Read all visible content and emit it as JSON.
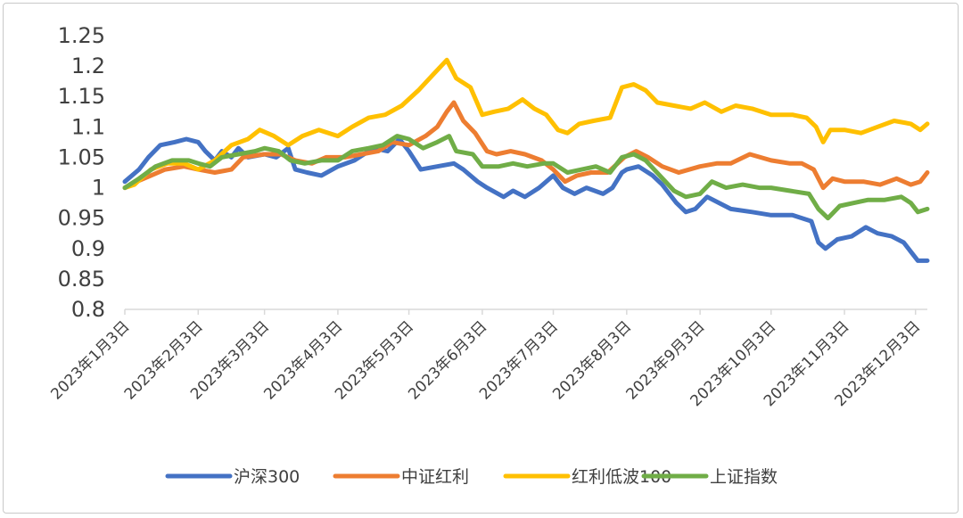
{
  "chart_data": {
    "type": "line",
    "title": "",
    "xlabel": "",
    "ylabel": "",
    "ylim": [
      0.8,
      1.25
    ],
    "y_ticks": [
      "1.25",
      "1.2",
      "1.15",
      "1.1",
      "1.05",
      "1",
      "0.95",
      "0.9",
      "0.85",
      "0.8"
    ],
    "x_ticks": [
      "2023年1月3日",
      "2023年2月3日",
      "2023年3月3日",
      "2023年4月3日",
      "2023年5月3日",
      "2023年6月3日",
      "2023年7月3日",
      "2023年8月3日",
      "2023年9月3日",
      "2023年10月3日",
      "2023年11月3日",
      "2023年12月3日"
    ],
    "x_range": [
      "2023-01-03",
      "2023-12-08"
    ],
    "grid": false,
    "legend_position": "bottom",
    "series": [
      {
        "name": "沪深300",
        "color": "#4472C4",
        "points": [
          [
            "2023-01-03",
            1.01
          ],
          [
            "2023-01-09",
            1.03
          ],
          [
            "2023-01-13",
            1.05
          ],
          [
            "2023-01-18",
            1.07
          ],
          [
            "2023-01-24",
            1.075
          ],
          [
            "2023-01-29",
            1.08
          ],
          [
            "2023-02-03",
            1.075
          ],
          [
            "2023-02-06",
            1.06
          ],
          [
            "2023-02-10",
            1.045
          ],
          [
            "2023-02-13",
            1.06
          ],
          [
            "2023-02-17",
            1.05
          ],
          [
            "2023-02-20",
            1.065
          ],
          [
            "2023-02-24",
            1.05
          ],
          [
            "2023-03-03",
            1.055
          ],
          [
            "2023-03-08",
            1.05
          ],
          [
            "2023-03-13",
            1.065
          ],
          [
            "2023-03-16",
            1.03
          ],
          [
            "2023-03-21",
            1.025
          ],
          [
            "2023-03-27",
            1.02
          ],
          [
            "2023-04-03",
            1.035
          ],
          [
            "2023-04-10",
            1.045
          ],
          [
            "2023-04-18",
            1.065
          ],
          [
            "2023-04-24",
            1.06
          ],
          [
            "2023-04-29",
            1.08
          ],
          [
            "2023-05-03",
            1.06
          ],
          [
            "2023-05-08",
            1.03
          ],
          [
            "2023-05-15",
            1.035
          ],
          [
            "2023-05-22",
            1.04
          ],
          [
            "2023-05-26",
            1.03
          ],
          [
            "2023-06-01",
            1.01
          ],
          [
            "2023-06-05",
            1.0
          ],
          [
            "2023-06-12",
            0.985
          ],
          [
            "2023-06-16",
            0.995
          ],
          [
            "2023-06-21",
            0.985
          ],
          [
            "2023-06-27",
            1.0
          ],
          [
            "2023-07-03",
            1.02
          ],
          [
            "2023-07-07",
            1.0
          ],
          [
            "2023-07-12",
            0.99
          ],
          [
            "2023-07-17",
            1.0
          ],
          [
            "2023-07-24",
            0.99
          ],
          [
            "2023-07-28",
            1.0
          ],
          [
            "2023-08-01",
            1.025
          ],
          [
            "2023-08-03",
            1.03
          ],
          [
            "2023-08-08",
            1.035
          ],
          [
            "2023-08-14",
            1.02
          ],
          [
            "2023-08-18",
            1.005
          ],
          [
            "2023-08-24",
            0.975
          ],
          [
            "2023-08-28",
            0.96
          ],
          [
            "2023-09-01",
            0.965
          ],
          [
            "2023-09-06",
            0.985
          ],
          [
            "2023-09-11",
            0.975
          ],
          [
            "2023-09-16",
            0.965
          ],
          [
            "2023-09-25",
            0.96
          ],
          [
            "2023-10-03",
            0.955
          ],
          [
            "2023-10-12",
            0.955
          ],
          [
            "2023-10-20",
            0.945
          ],
          [
            "2023-10-23",
            0.91
          ],
          [
            "2023-10-26",
            0.9
          ],
          [
            "2023-10-31",
            0.915
          ],
          [
            "2023-11-06",
            0.92
          ],
          [
            "2023-11-12",
            0.935
          ],
          [
            "2023-11-17",
            0.925
          ],
          [
            "2023-11-23",
            0.92
          ],
          [
            "2023-11-28",
            0.91
          ],
          [
            "2023-12-01",
            0.895
          ],
          [
            "2023-12-04",
            0.88
          ],
          [
            "2023-12-08",
            0.88
          ]
        ]
      },
      {
        "name": "中证红利",
        "color": "#ED7D31",
        "points": [
          [
            "2023-01-03",
            1.0
          ],
          [
            "2023-01-08",
            1.01
          ],
          [
            "2023-01-14",
            1.02
          ],
          [
            "2023-01-20",
            1.03
          ],
          [
            "2023-01-28",
            1.035
          ],
          [
            "2023-02-03",
            1.03
          ],
          [
            "2023-02-10",
            1.025
          ],
          [
            "2023-02-17",
            1.03
          ],
          [
            "2023-02-22",
            1.05
          ],
          [
            "2023-03-03",
            1.055
          ],
          [
            "2023-03-10",
            1.055
          ],
          [
            "2023-03-16",
            1.045
          ],
          [
            "2023-03-23",
            1.04
          ],
          [
            "2023-03-29",
            1.05
          ],
          [
            "2023-04-06",
            1.05
          ],
          [
            "2023-04-13",
            1.055
          ],
          [
            "2023-04-20",
            1.06
          ],
          [
            "2023-04-26",
            1.075
          ],
          [
            "2023-05-03",
            1.07
          ],
          [
            "2023-05-10",
            1.085
          ],
          [
            "2023-05-15",
            1.1
          ],
          [
            "2023-05-19",
            1.125
          ],
          [
            "2023-05-22",
            1.14
          ],
          [
            "2023-05-26",
            1.11
          ],
          [
            "2023-05-31",
            1.09
          ],
          [
            "2023-06-05",
            1.06
          ],
          [
            "2023-06-09",
            1.055
          ],
          [
            "2023-06-15",
            1.06
          ],
          [
            "2023-06-21",
            1.055
          ],
          [
            "2023-06-28",
            1.045
          ],
          [
            "2023-07-03",
            1.03
          ],
          [
            "2023-07-08",
            1.01
          ],
          [
            "2023-07-13",
            1.02
          ],
          [
            "2023-07-19",
            1.025
          ],
          [
            "2023-07-26",
            1.025
          ],
          [
            "2023-08-02",
            1.05
          ],
          [
            "2023-08-07",
            1.06
          ],
          [
            "2023-08-12",
            1.05
          ],
          [
            "2023-08-18",
            1.035
          ],
          [
            "2023-08-25",
            1.025
          ],
          [
            "2023-09-03",
            1.035
          ],
          [
            "2023-09-10",
            1.04
          ],
          [
            "2023-09-16",
            1.04
          ],
          [
            "2023-09-24",
            1.055
          ],
          [
            "2023-10-03",
            1.045
          ],
          [
            "2023-10-11",
            1.04
          ],
          [
            "2023-10-16",
            1.04
          ],
          [
            "2023-10-21",
            1.03
          ],
          [
            "2023-10-25",
            1.0
          ],
          [
            "2023-10-29",
            1.015
          ],
          [
            "2023-11-03",
            1.01
          ],
          [
            "2023-11-11",
            1.01
          ],
          [
            "2023-11-18",
            1.005
          ],
          [
            "2023-11-25",
            1.015
          ],
          [
            "2023-12-01",
            1.005
          ],
          [
            "2023-12-05",
            1.01
          ],
          [
            "2023-12-08",
            1.025
          ]
        ]
      },
      {
        "name": "红利低波100",
        "color": "#FFC000",
        "points": [
          [
            "2023-01-03",
            1.0
          ],
          [
            "2023-01-07",
            1.005
          ],
          [
            "2023-01-14",
            1.03
          ],
          [
            "2023-01-21",
            1.04
          ],
          [
            "2023-01-28",
            1.04
          ],
          [
            "2023-02-03",
            1.03
          ],
          [
            "2023-02-10",
            1.045
          ],
          [
            "2023-02-17",
            1.07
          ],
          [
            "2023-02-24",
            1.08
          ],
          [
            "2023-03-01",
            1.095
          ],
          [
            "2023-03-07",
            1.085
          ],
          [
            "2023-03-13",
            1.07
          ],
          [
            "2023-03-19",
            1.085
          ],
          [
            "2023-03-26",
            1.095
          ],
          [
            "2023-04-03",
            1.085
          ],
          [
            "2023-04-09",
            1.1
          ],
          [
            "2023-04-16",
            1.115
          ],
          [
            "2023-04-23",
            1.12
          ],
          [
            "2023-04-30",
            1.135
          ],
          [
            "2023-05-07",
            1.16
          ],
          [
            "2023-05-13",
            1.185
          ],
          [
            "2023-05-19",
            1.21
          ],
          [
            "2023-05-23",
            1.18
          ],
          [
            "2023-05-29",
            1.165
          ],
          [
            "2023-06-03",
            1.12
          ],
          [
            "2023-06-08",
            1.125
          ],
          [
            "2023-06-14",
            1.13
          ],
          [
            "2023-06-20",
            1.145
          ],
          [
            "2023-06-25",
            1.13
          ],
          [
            "2023-06-30",
            1.12
          ],
          [
            "2023-07-05",
            1.095
          ],
          [
            "2023-07-09",
            1.09
          ],
          [
            "2023-07-14",
            1.105
          ],
          [
            "2023-07-20",
            1.11
          ],
          [
            "2023-07-27",
            1.115
          ],
          [
            "2023-08-01",
            1.165
          ],
          [
            "2023-08-06",
            1.17
          ],
          [
            "2023-08-11",
            1.16
          ],
          [
            "2023-08-16",
            1.14
          ],
          [
            "2023-08-23",
            1.135
          ],
          [
            "2023-08-30",
            1.13
          ],
          [
            "2023-09-05",
            1.14
          ],
          [
            "2023-09-12",
            1.125
          ],
          [
            "2023-09-18",
            1.135
          ],
          [
            "2023-09-25",
            1.13
          ],
          [
            "2023-10-03",
            1.12
          ],
          [
            "2023-10-12",
            1.12
          ],
          [
            "2023-10-18",
            1.115
          ],
          [
            "2023-10-22",
            1.1
          ],
          [
            "2023-10-25",
            1.075
          ],
          [
            "2023-10-28",
            1.095
          ],
          [
            "2023-11-03",
            1.095
          ],
          [
            "2023-11-10",
            1.09
          ],
          [
            "2023-11-17",
            1.1
          ],
          [
            "2023-11-24",
            1.11
          ],
          [
            "2023-12-01",
            1.105
          ],
          [
            "2023-12-05",
            1.095
          ],
          [
            "2023-12-08",
            1.105
          ]
        ]
      },
      {
        "name": "上证指数",
        "color": "#70AD47",
        "points": [
          [
            "2023-01-03",
            1.0
          ],
          [
            "2023-01-09",
            1.015
          ],
          [
            "2023-01-16",
            1.035
          ],
          [
            "2023-01-23",
            1.045
          ],
          [
            "2023-01-30",
            1.045
          ],
          [
            "2023-02-03",
            1.04
          ],
          [
            "2023-02-08",
            1.035
          ],
          [
            "2023-02-13",
            1.05
          ],
          [
            "2023-02-20",
            1.055
          ],
          [
            "2023-02-27",
            1.06
          ],
          [
            "2023-03-03",
            1.065
          ],
          [
            "2023-03-09",
            1.06
          ],
          [
            "2023-03-14",
            1.045
          ],
          [
            "2023-03-20",
            1.04
          ],
          [
            "2023-03-27",
            1.045
          ],
          [
            "2023-04-03",
            1.045
          ],
          [
            "2023-04-09",
            1.06
          ],
          [
            "2023-04-16",
            1.065
          ],
          [
            "2023-04-22",
            1.07
          ],
          [
            "2023-04-28",
            1.085
          ],
          [
            "2023-05-03",
            1.08
          ],
          [
            "2023-05-09",
            1.065
          ],
          [
            "2023-05-15",
            1.075
          ],
          [
            "2023-05-20",
            1.085
          ],
          [
            "2023-05-23",
            1.06
          ],
          [
            "2023-05-30",
            1.055
          ],
          [
            "2023-06-03",
            1.035
          ],
          [
            "2023-06-10",
            1.035
          ],
          [
            "2023-06-16",
            1.04
          ],
          [
            "2023-06-22",
            1.035
          ],
          [
            "2023-06-29",
            1.04
          ],
          [
            "2023-07-03",
            1.04
          ],
          [
            "2023-07-09",
            1.025
          ],
          [
            "2023-07-15",
            1.03
          ],
          [
            "2023-07-21",
            1.035
          ],
          [
            "2023-07-27",
            1.025
          ],
          [
            "2023-08-01",
            1.05
          ],
          [
            "2023-08-06",
            1.055
          ],
          [
            "2023-08-11",
            1.045
          ],
          [
            "2023-08-17",
            1.02
          ],
          [
            "2023-08-23",
            0.995
          ],
          [
            "2023-08-28",
            0.985
          ],
          [
            "2023-09-03",
            0.99
          ],
          [
            "2023-09-08",
            1.01
          ],
          [
            "2023-09-14",
            1.0
          ],
          [
            "2023-09-21",
            1.005
          ],
          [
            "2023-09-28",
            1.0
          ],
          [
            "2023-10-03",
            1.0
          ],
          [
            "2023-10-11",
            0.995
          ],
          [
            "2023-10-19",
            0.99
          ],
          [
            "2023-10-23",
            0.965
          ],
          [
            "2023-10-27",
            0.95
          ],
          [
            "2023-11-01",
            0.97
          ],
          [
            "2023-11-07",
            0.975
          ],
          [
            "2023-11-13",
            0.98
          ],
          [
            "2023-11-20",
            0.98
          ],
          [
            "2023-11-27",
            0.985
          ],
          [
            "2023-12-01",
            0.975
          ],
          [
            "2023-12-04",
            0.96
          ],
          [
            "2023-12-08",
            0.965
          ]
        ]
      }
    ]
  }
}
